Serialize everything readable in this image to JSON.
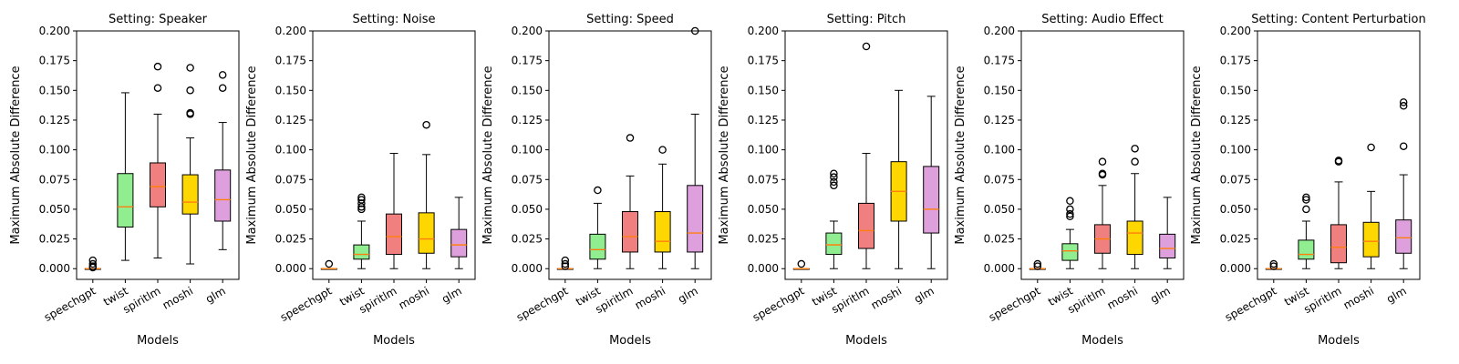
{
  "chart_data": {
    "type": "box",
    "figure_xlabel": "Models",
    "ylabel": "Maximum Absolute Difference",
    "ylim": [
      -0.009,
      0.2
    ],
    "yticks": [
      0.0,
      0.025,
      0.05,
      0.075,
      0.1,
      0.125,
      0.15,
      0.175,
      0.2
    ],
    "ytick_labels": [
      "0.000",
      "0.025",
      "0.050",
      "0.075",
      "0.100",
      "0.125",
      "0.150",
      "0.175",
      "0.200"
    ],
    "models": [
      "speechgpt",
      "twist",
      "spiritlm",
      "moshi",
      "glm"
    ],
    "colors": {
      "speechgpt": "#f4a460",
      "twist": "#90ee90",
      "spiritlm": "#f08080",
      "moshi": "#ffd700",
      "glm": "#dda0dd",
      "median": "#ff7f0e"
    },
    "panels": [
      {
        "title": "Setting: Speaker",
        "xlabel": "Models",
        "boxes": [
          {
            "model": "speechgpt",
            "whislo": 0.0,
            "q1": 0.0,
            "med": 0.0,
            "q3": 0.0,
            "whishi": 0.0,
            "fliers": [
              0.001,
              0.002,
              0.004,
              0.007
            ]
          },
          {
            "model": "twist",
            "whislo": 0.007,
            "q1": 0.035,
            "med": 0.052,
            "q3": 0.08,
            "whishi": 0.148,
            "fliers": []
          },
          {
            "model": "spiritlm",
            "whislo": 0.009,
            "q1": 0.052,
            "med": 0.069,
            "q3": 0.089,
            "whishi": 0.13,
            "fliers": [
              0.152,
              0.17
            ]
          },
          {
            "model": "moshi",
            "whislo": 0.004,
            "q1": 0.046,
            "med": 0.056,
            "q3": 0.079,
            "whishi": 0.11,
            "fliers": [
              0.13,
              0.131,
              0.15,
              0.169
            ]
          },
          {
            "model": "glm",
            "whislo": 0.016,
            "q1": 0.04,
            "med": 0.058,
            "q3": 0.083,
            "whishi": 0.123,
            "fliers": [
              0.152,
              0.163
            ]
          }
        ]
      },
      {
        "title": "Setting: Noise",
        "xlabel": "Models",
        "boxes": [
          {
            "model": "speechgpt",
            "whislo": 0.0,
            "q1": 0.0,
            "med": 0.0,
            "q3": 0.0,
            "whishi": 0.0,
            "fliers": [
              0.004
            ]
          },
          {
            "model": "twist",
            "whislo": 0.0,
            "q1": 0.008,
            "med": 0.012,
            "q3": 0.02,
            "whishi": 0.04,
            "fliers": [
              0.05,
              0.052,
              0.055,
              0.058,
              0.06
            ]
          },
          {
            "model": "spiritlm",
            "whislo": 0.0,
            "q1": 0.012,
            "med": 0.027,
            "q3": 0.046,
            "whishi": 0.097,
            "fliers": []
          },
          {
            "model": "moshi",
            "whislo": 0.0,
            "q1": 0.013,
            "med": 0.025,
            "q3": 0.047,
            "whishi": 0.096,
            "fliers": [
              0.121
            ]
          },
          {
            "model": "glm",
            "whislo": 0.0,
            "q1": 0.01,
            "med": 0.02,
            "q3": 0.033,
            "whishi": 0.06,
            "fliers": []
          }
        ]
      },
      {
        "title": "Setting: Speed",
        "xlabel": "Models",
        "boxes": [
          {
            "model": "speechgpt",
            "whislo": 0.0,
            "q1": 0.0,
            "med": 0.0,
            "q3": 0.0,
            "whishi": 0.0,
            "fliers": [
              0.002,
              0.004,
              0.007
            ]
          },
          {
            "model": "twist",
            "whislo": 0.0,
            "q1": 0.008,
            "med": 0.016,
            "q3": 0.029,
            "whishi": 0.055,
            "fliers": [
              0.066
            ]
          },
          {
            "model": "spiritlm",
            "whislo": 0.0,
            "q1": 0.014,
            "med": 0.027,
            "q3": 0.048,
            "whishi": 0.078,
            "fliers": [
              0.11
            ]
          },
          {
            "model": "moshi",
            "whislo": 0.0,
            "q1": 0.014,
            "med": 0.023,
            "q3": 0.048,
            "whishi": 0.088,
            "fliers": [
              0.1
            ]
          },
          {
            "model": "glm",
            "whislo": 0.0,
            "q1": 0.014,
            "med": 0.03,
            "q3": 0.07,
            "whishi": 0.13,
            "fliers": [
              0.2
            ]
          }
        ]
      },
      {
        "title": "Setting: Pitch",
        "xlabel": "Models",
        "boxes": [
          {
            "model": "speechgpt",
            "whislo": 0.0,
            "q1": 0.0,
            "med": 0.0,
            "q3": 0.0,
            "whishi": 0.0,
            "fliers": [
              0.004
            ]
          },
          {
            "model": "twist",
            "whislo": 0.0,
            "q1": 0.012,
            "med": 0.02,
            "q3": 0.03,
            "whishi": 0.04,
            "fliers": [
              0.07,
              0.073,
              0.077,
              0.08
            ]
          },
          {
            "model": "spiritlm",
            "whislo": 0.0,
            "q1": 0.017,
            "med": 0.032,
            "q3": 0.055,
            "whishi": 0.097,
            "fliers": [
              0.187
            ]
          },
          {
            "model": "moshi",
            "whislo": 0.0,
            "q1": 0.04,
            "med": 0.065,
            "q3": 0.09,
            "whishi": 0.15,
            "fliers": []
          },
          {
            "model": "glm",
            "whislo": 0.0,
            "q1": 0.03,
            "med": 0.05,
            "q3": 0.086,
            "whishi": 0.145,
            "fliers": []
          }
        ]
      },
      {
        "title": "Setting: Audio Effect",
        "xlabel": "Models",
        "boxes": [
          {
            "model": "speechgpt",
            "whislo": 0.0,
            "q1": 0.0,
            "med": 0.0,
            "q3": 0.0,
            "whishi": 0.0,
            "fliers": [
              0.002,
              0.004
            ]
          },
          {
            "model": "twist",
            "whislo": 0.0,
            "q1": 0.007,
            "med": 0.015,
            "q3": 0.021,
            "whishi": 0.033,
            "fliers": [
              0.044,
              0.046,
              0.05,
              0.057
            ]
          },
          {
            "model": "spiritlm",
            "whislo": 0.0,
            "q1": 0.013,
            "med": 0.025,
            "q3": 0.037,
            "whishi": 0.07,
            "fliers": [
              0.079,
              0.08,
              0.09
            ]
          },
          {
            "model": "moshi",
            "whislo": 0.0,
            "q1": 0.012,
            "med": 0.03,
            "q3": 0.04,
            "whishi": 0.08,
            "fliers": [
              0.09,
              0.101
            ]
          },
          {
            "model": "glm",
            "whislo": 0.0,
            "q1": 0.009,
            "med": 0.017,
            "q3": 0.029,
            "whishi": 0.06,
            "fliers": []
          }
        ]
      },
      {
        "title": "Setting: Content Perturbation",
        "xlabel": "Models",
        "boxes": [
          {
            "model": "speechgpt",
            "whislo": 0.0,
            "q1": 0.0,
            "med": 0.0,
            "q3": 0.0,
            "whishi": 0.0,
            "fliers": [
              0.002,
              0.004
            ]
          },
          {
            "model": "twist",
            "whislo": 0.0,
            "q1": 0.008,
            "med": 0.012,
            "q3": 0.024,
            "whishi": 0.04,
            "fliers": [
              0.05,
              0.058,
              0.06
            ]
          },
          {
            "model": "spiritlm",
            "whislo": 0.0,
            "q1": 0.005,
            "med": 0.018,
            "q3": 0.037,
            "whishi": 0.073,
            "fliers": [
              0.09,
              0.091
            ]
          },
          {
            "model": "moshi",
            "whislo": 0.0,
            "q1": 0.01,
            "med": 0.023,
            "q3": 0.039,
            "whishi": 0.065,
            "fliers": [
              0.102
            ]
          },
          {
            "model": "glm",
            "whislo": 0.0,
            "q1": 0.013,
            "med": 0.026,
            "q3": 0.041,
            "whishi": 0.079,
            "fliers": [
              0.103,
              0.137,
              0.14
            ]
          }
        ]
      }
    ]
  }
}
